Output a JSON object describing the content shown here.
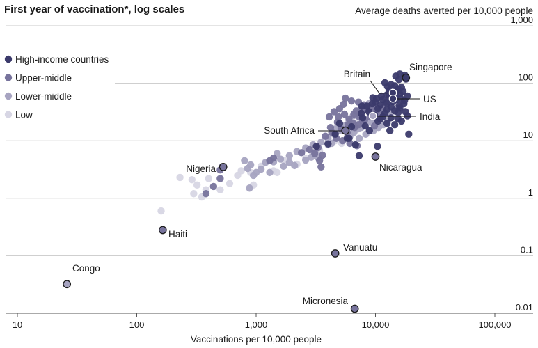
{
  "chart_data": {
    "type": "scatter",
    "title": "First year of vaccination*, log scales",
    "ylabel": "Average deaths averted per 10,000 people",
    "xlabel": "Vaccinations per 10,000 people",
    "xscale": "log",
    "yscale": "log",
    "xlim": [
      7,
      170000
    ],
    "ylim": [
      0.0076,
      1150
    ],
    "x_ticks": [
      {
        "value": 10,
        "label": "10"
      },
      {
        "value": 100,
        "label": "100"
      },
      {
        "value": 1000,
        "label": "1,000"
      },
      {
        "value": 10000,
        "label": "10,000"
      },
      {
        "value": 100000,
        "label": "100,000"
      }
    ],
    "y_ticks": [
      {
        "value": 1000,
        "label": "1,000"
      },
      {
        "value": 100,
        "label": "100"
      },
      {
        "value": 10,
        "label": "10"
      },
      {
        "value": 1,
        "label": "1"
      },
      {
        "value": 0.1,
        "label": "0.1"
      },
      {
        "value": 0.01,
        "label": "0.01"
      }
    ],
    "legend_position": "top-left",
    "series": [
      {
        "name": "High-income countries",
        "key": "high",
        "color": "#3b3a6b",
        "points": [
          [
            16000,
            145
          ],
          [
            17600,
            138
          ],
          [
            14800,
            133
          ],
          [
            15700,
            116
          ],
          [
            18000,
            118
          ],
          [
            12000,
            102
          ],
          [
            13500,
            95
          ],
          [
            14500,
            90
          ],
          [
            15500,
            80
          ],
          [
            16500,
            85
          ],
          [
            13000,
            75
          ],
          [
            15000,
            70
          ],
          [
            16000,
            65
          ],
          [
            14000,
            60
          ],
          [
            13000,
            57
          ],
          [
            16200,
            55
          ],
          [
            15000,
            52
          ],
          [
            12500,
            63
          ],
          [
            17000,
            72
          ],
          [
            18500,
            60
          ],
          [
            14000,
            48
          ],
          [
            17300,
            44
          ],
          [
            13500,
            39
          ],
          [
            16000,
            37
          ],
          [
            12500,
            35
          ],
          [
            14500,
            33
          ],
          [
            15500,
            31
          ],
          [
            11000,
            42
          ],
          [
            12000,
            30
          ],
          [
            10500,
            36
          ],
          [
            9800,
            28
          ],
          [
            11500,
            26
          ],
          [
            13500,
            25
          ],
          [
            15500,
            24
          ],
          [
            10500,
            22
          ],
          [
            12500,
            20
          ],
          [
            16500,
            22
          ],
          [
            14500,
            19
          ],
          [
            11000,
            24
          ],
          [
            19000,
            13
          ],
          [
            8500,
            40
          ],
          [
            10000,
            47
          ],
          [
            11500,
            52
          ],
          [
            12500,
            45
          ],
          [
            17500,
            50
          ],
          [
            9500,
            56
          ],
          [
            8800,
            32
          ],
          [
            13000,
            66
          ],
          [
            14800,
            76
          ],
          [
            12600,
            88
          ],
          [
            11200,
            60
          ],
          [
            10200,
            54
          ],
          [
            9400,
            44
          ],
          [
            15800,
            41
          ],
          [
            17800,
            32
          ],
          [
            7600,
            30
          ],
          [
            18500,
            27
          ],
          [
            13200,
            15
          ],
          [
            7800,
            25
          ],
          [
            8200,
            18
          ],
          [
            6000,
            11
          ],
          [
            6300,
            17.5
          ],
          [
            8900,
            15
          ],
          [
            10400,
            8
          ],
          [
            7300,
            5.5
          ],
          [
            4000,
            8.8
          ],
          [
            3200,
            8
          ],
          [
            4600,
            13
          ],
          [
            5800,
            11
          ],
          [
            6800,
            8.5
          ],
          [
            5000,
            20
          ],
          [
            7700,
            40
          ]
        ]
      },
      {
        "name": "Upper-middle",
        "key": "upper",
        "color": "#77739c",
        "points": [
          [
            4100,
            26
          ],
          [
            4500,
            32
          ],
          [
            5000,
            36
          ],
          [
            5500,
            29
          ],
          [
            6000,
            24
          ],
          [
            6500,
            20
          ],
          [
            4800,
            21
          ],
          [
            5200,
            16
          ],
          [
            5800,
            14
          ],
          [
            6700,
            17
          ],
          [
            7200,
            19
          ],
          [
            7800,
            22
          ],
          [
            4300,
            14
          ],
          [
            3800,
            12
          ],
          [
            4700,
            11
          ],
          [
            5300,
            10
          ],
          [
            6100,
            9
          ],
          [
            7000,
            8.2
          ],
          [
            3300,
            7.6
          ],
          [
            2800,
            7
          ],
          [
            2400,
            6.2
          ],
          [
            3600,
            5.6
          ],
          [
            5600,
            55
          ],
          [
            6300,
            49
          ],
          [
            7200,
            47
          ],
          [
            8000,
            42
          ],
          [
            8600,
            36
          ],
          [
            9200,
            31
          ],
          [
            9600,
            39
          ],
          [
            10200,
            33
          ],
          [
            6600,
            29
          ],
          [
            7300,
            26
          ],
          [
            8100,
            23
          ],
          [
            5900,
            19
          ],
          [
            4900,
            26
          ],
          [
            4200,
            17
          ],
          [
            3100,
            6
          ],
          [
            3400,
            4.5
          ],
          [
            3500,
            3.5
          ],
          [
            1400,
            5
          ],
          [
            1300,
            4.5
          ],
          [
            520,
            3.5
          ],
          [
            500,
            3.1
          ],
          [
            500,
            2.2
          ],
          [
            440,
            1.6
          ],
          [
            380,
            1.2
          ],
          [
            9000,
            26
          ],
          [
            10800,
            30
          ],
          [
            11500,
            37
          ],
          [
            6900,
            33
          ],
          [
            7600,
            35
          ],
          [
            8300,
            38
          ],
          [
            5400,
            43
          ],
          [
            12200,
            47
          ],
          [
            9800,
            18
          ]
        ]
      },
      {
        "name": "Lower-middle",
        "key": "lower",
        "color": "#a7a4c1",
        "points": [
          [
            8200,
            36
          ],
          [
            8800,
            44
          ],
          [
            9400,
            38
          ],
          [
            10100,
            30
          ],
          [
            10800,
            27
          ],
          [
            7800,
            33
          ],
          [
            7000,
            30
          ],
          [
            6500,
            27
          ],
          [
            6000,
            22
          ],
          [
            5500,
            18
          ],
          [
            5000,
            15
          ],
          [
            4500,
            13
          ],
          [
            4000,
            11
          ],
          [
            3500,
            9.5
          ],
          [
            3000,
            8.5
          ],
          [
            2600,
            7.5
          ],
          [
            2200,
            6.5
          ],
          [
            1900,
            5.5
          ],
          [
            1600,
            4.8
          ],
          [
            1400,
            4.3
          ],
          [
            1200,
            4.2
          ],
          [
            1100,
            3.2
          ],
          [
            1000,
            2.8
          ],
          [
            950,
            2.5
          ],
          [
            900,
            3.8
          ],
          [
            850,
            3.3
          ],
          [
            800,
            4.5
          ],
          [
            1500,
            6
          ],
          [
            1700,
            3.6
          ],
          [
            1900,
            4.2
          ],
          [
            2100,
            3.7
          ],
          [
            2600,
            4.6
          ],
          [
            2900,
            5.2
          ],
          [
            3100,
            6.3
          ],
          [
            3300,
            5.1
          ],
          [
            6100,
            12
          ],
          [
            6600,
            14
          ],
          [
            7100,
            16
          ],
          [
            7600,
            17
          ],
          [
            9100,
            21
          ],
          [
            10100,
            23
          ],
          [
            11100,
            26
          ],
          [
            12100,
            29
          ],
          [
            13100,
            31
          ],
          [
            14100,
            33
          ],
          [
            15100,
            36
          ],
          [
            7300,
            11
          ],
          [
            8300,
            13
          ],
          [
            9600,
            15
          ],
          [
            10600,
            17
          ],
          [
            11600,
            19
          ],
          [
            12600,
            22
          ],
          [
            4600,
            16
          ],
          [
            4300,
            9
          ],
          [
            1300,
            2.8
          ],
          [
            880,
            1.5
          ]
        ]
      },
      {
        "name": "Low",
        "key": "low",
        "color": "#d7d6e4",
        "points": [
          [
            230,
            2.3
          ],
          [
            290,
            2.1
          ],
          [
            300,
            1.2
          ],
          [
            320,
            1.7
          ],
          [
            380,
            1.4
          ],
          [
            350,
            1.05
          ],
          [
            400,
            2.2
          ],
          [
            500,
            1.4
          ],
          [
            600,
            1.8
          ],
          [
            700,
            2.5
          ],
          [
            750,
            3.0
          ],
          [
            900,
            2.8
          ],
          [
            950,
            1.7
          ],
          [
            1100,
            3.6
          ],
          [
            1400,
            3.0
          ],
          [
            1500,
            2.8
          ],
          [
            1700,
            4.6
          ],
          [
            2200,
            3.9
          ],
          [
            2600,
            4.9
          ],
          [
            3000,
            5.8
          ],
          [
            3400,
            6.8
          ],
          [
            4000,
            8.5
          ],
          [
            4600,
            10
          ],
          [
            5200,
            9
          ],
          [
            5800,
            12
          ],
          [
            6400,
            14
          ],
          [
            7000,
            20
          ],
          [
            8000,
            24
          ],
          [
            10000,
            33
          ],
          [
            160,
            0.6
          ]
        ]
      }
    ],
    "highlighted": [
      {
        "label": "Singapore",
        "x": 18000,
        "y": 125,
        "series": "high"
      },
      {
        "label": "Britain",
        "x": 14000,
        "y": 68,
        "series": "high"
      },
      {
        "label": "US",
        "x": 14000,
        "y": 54,
        "series": "high"
      },
      {
        "label": "India",
        "x": 9500,
        "y": 27,
        "series": "lower"
      },
      {
        "label": "South Africa",
        "x": 5600,
        "y": 15,
        "series": "upper"
      },
      {
        "label": "Nicaragua",
        "x": 10000,
        "y": 5.3,
        "series": "upper"
      },
      {
        "label": "Nigeria",
        "x": 530,
        "y": 3.5,
        "series": "upper"
      },
      {
        "label": "Haiti",
        "x": 165,
        "y": 0.28,
        "series": "upper"
      },
      {
        "label": "Vanuatu",
        "x": 4600,
        "y": 0.11,
        "series": "upper"
      },
      {
        "label": "Congo",
        "x": 26,
        "y": 0.032,
        "series": "lower"
      },
      {
        "label": "Micronesia",
        "x": 6700,
        "y": 0.012,
        "series": "upper"
      }
    ]
  }
}
